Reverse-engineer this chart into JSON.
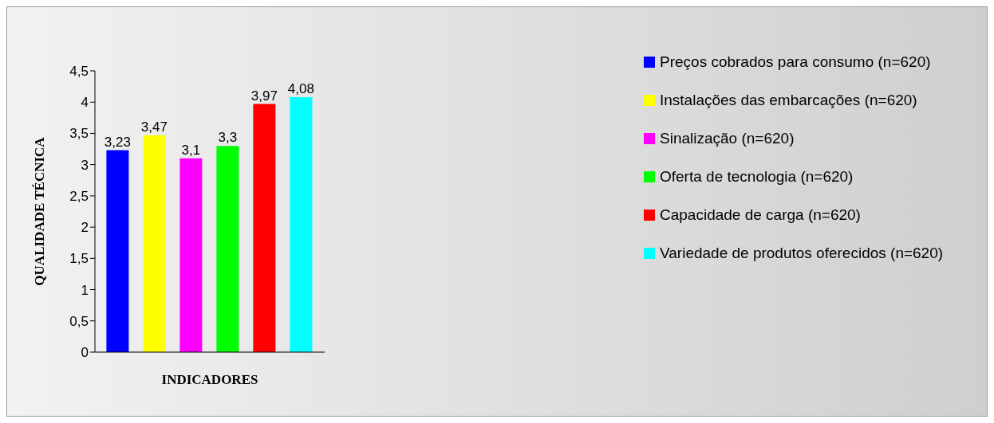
{
  "chart_data": {
    "type": "bar",
    "xlabel": "INDICADORES",
    "ylabel": "QUALIDADE TÉCNICA",
    "categories": [
      null
    ],
    "series": [
      {
        "name": "Preços cobrados para consumo (n=620)",
        "color": "#0000ff",
        "values": [
          3.23
        ],
        "value_labels": [
          "3,23"
        ]
      },
      {
        "name": "Instalações das embarcações (n=620)",
        "color": "#ffff00",
        "values": [
          3.47
        ],
        "value_labels": [
          "3,47"
        ]
      },
      {
        "name": "Sinalização (n=620)",
        "color": "#ff00ff",
        "values": [
          3.1
        ],
        "value_labels": [
          "3,1"
        ]
      },
      {
        "name": "Oferta de tecnologia (n=620)",
        "color": "#00ff00",
        "values": [
          3.3
        ],
        "value_labels": [
          "3,3"
        ]
      },
      {
        "name": "Capacidade de carga (n=620)",
        "color": "#ff0000",
        "values": [
          3.97
        ],
        "value_labels": [
          "3,97"
        ]
      },
      {
        "name": "Variedade de produtos oferecidos (n=620)",
        "color": "#00ffff",
        "values": [
          4.08
        ],
        "value_labels": [
          "4,08"
        ]
      }
    ],
    "ylim": [
      0,
      4.5
    ],
    "yticks": [
      0,
      {
        "value": 0.5,
        "label": "0,5"
      },
      1,
      {
        "value": 1.5,
        "label": "1,5"
      },
      2,
      {
        "value": 2.5,
        "label": "2,5"
      },
      3,
      {
        "value": 3.5,
        "label": "3,5"
      },
      4,
      {
        "value": 4.5,
        "label": "4,5"
      }
    ],
    "grid": false,
    "legend": "right"
  }
}
